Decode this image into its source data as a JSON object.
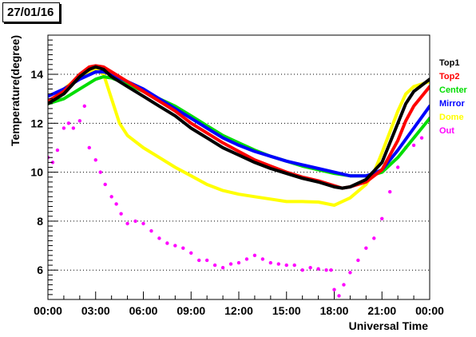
{
  "date_label": "27/01/16",
  "chart_data": {
    "type": "line",
    "xlabel": "Universal Time",
    "ylabel": "Temperature(degree)",
    "title": "",
    "xlim": [
      0,
      24
    ],
    "ylim": [
      4.8,
      15.6
    ],
    "x_ticks": [
      0,
      3,
      6,
      9,
      12,
      15,
      18,
      21,
      24
    ],
    "x_tick_labels": [
      "00:00",
      "03:00",
      "06:00",
      "09:00",
      "12:00",
      "15:00",
      "18:00",
      "21:00",
      "00:00"
    ],
    "y_ticks": [
      6,
      8,
      10,
      12,
      14
    ],
    "y_tick_labels": [
      "6",
      "8",
      "10",
      "12",
      "14"
    ],
    "grid": "horizontal dotted",
    "legend_placement": "right",
    "series": [
      {
        "name": "Top1",
        "color": "#000000",
        "style": "line",
        "x": [
          0,
          1,
          2,
          2.6,
          3,
          3.5,
          4,
          5,
          6,
          7,
          8,
          9,
          10,
          11,
          12,
          13,
          14,
          15,
          16,
          17,
          18,
          18.5,
          19,
          20,
          21,
          22,
          22.5,
          23,
          24
        ],
        "y": [
          12.8,
          13.2,
          13.9,
          14.2,
          14.3,
          14.2,
          13.9,
          13.5,
          13.1,
          12.7,
          12.3,
          11.8,
          11.4,
          11.0,
          10.7,
          10.4,
          10.15,
          9.95,
          9.75,
          9.6,
          9.4,
          9.35,
          9.4,
          9.7,
          10.4,
          12.0,
          12.8,
          13.3,
          13.8
        ]
      },
      {
        "name": "Top2",
        "color": "#ff0000",
        "style": "line",
        "x": [
          0,
          1,
          2,
          2.6,
          3,
          3.5,
          4,
          5,
          6,
          7,
          8,
          9,
          10,
          11,
          12,
          13,
          14,
          15,
          16,
          17,
          18,
          18.5,
          19,
          20,
          21,
          22,
          22.5,
          23,
          24
        ],
        "y": [
          12.9,
          13.3,
          14.0,
          14.3,
          14.35,
          14.3,
          14.1,
          13.7,
          13.3,
          12.9,
          12.5,
          12.0,
          11.6,
          11.2,
          10.85,
          10.5,
          10.25,
          10.0,
          9.8,
          9.65,
          9.45,
          9.35,
          9.4,
          9.6,
          10.1,
          11.3,
          12.1,
          12.7,
          13.5
        ]
      },
      {
        "name": "Center",
        "color": "#00dd00",
        "style": "line",
        "x": [
          0,
          1,
          2,
          3,
          3.5,
          4,
          5,
          6,
          7,
          8,
          9,
          10,
          11,
          12,
          13,
          14,
          15,
          16,
          17,
          18,
          19,
          20,
          20.5,
          21,
          22,
          23,
          24
        ],
        "y": [
          12.8,
          13.0,
          13.4,
          13.8,
          13.9,
          13.85,
          13.6,
          13.3,
          13.0,
          12.7,
          12.3,
          11.9,
          11.5,
          11.2,
          10.9,
          10.65,
          10.45,
          10.25,
          10.1,
          9.95,
          9.85,
          9.85,
          9.9,
          10.0,
          10.6,
          11.4,
          12.2
        ]
      },
      {
        "name": "Mirror",
        "color": "#0000ff",
        "style": "line",
        "x": [
          0,
          1,
          2,
          3,
          3.5,
          4,
          5,
          6,
          7,
          8,
          9,
          10,
          11,
          12,
          13,
          14,
          15,
          16,
          17,
          18,
          19,
          20,
          20.5,
          21,
          22,
          23,
          24
        ],
        "y": [
          13.1,
          13.4,
          13.8,
          14.1,
          14.1,
          14.0,
          13.7,
          13.4,
          13.0,
          12.6,
          12.2,
          11.8,
          11.4,
          11.1,
          10.85,
          10.65,
          10.45,
          10.3,
          10.15,
          10.0,
          9.85,
          9.85,
          9.95,
          10.1,
          10.9,
          11.8,
          12.7
        ]
      },
      {
        "name": "Dome",
        "color": "#ffff00",
        "style": "line",
        "x": [
          0,
          1,
          2,
          2.5,
          3,
          3.5,
          4,
          4.5,
          5,
          6,
          7,
          8,
          9,
          10,
          11,
          12,
          13,
          14,
          15,
          16,
          17,
          18,
          19,
          20,
          20.5,
          21,
          22,
          22.5,
          23,
          24
        ],
        "y": [
          12.8,
          13.4,
          13.9,
          14.1,
          14.2,
          14.0,
          13.0,
          12.0,
          11.5,
          11.0,
          10.6,
          10.2,
          9.85,
          9.5,
          9.25,
          9.1,
          9.0,
          8.9,
          8.8,
          8.8,
          8.78,
          8.65,
          8.95,
          9.5,
          10.0,
          10.8,
          12.5,
          13.2,
          13.5,
          13.7
        ]
      },
      {
        "name": "Out",
        "color": "#ff00ff",
        "style": "scatter",
        "x": [
          0,
          0.3,
          0.6,
          1,
          1.3,
          1.6,
          2,
          2.3,
          2.6,
          3,
          3.3,
          3.6,
          4,
          4.3,
          4.6,
          5,
          5.5,
          6,
          6.5,
          7,
          7.5,
          8,
          8.5,
          9,
          9.5,
          10,
          10.5,
          11,
          11.5,
          12,
          12.5,
          13,
          13.5,
          14,
          14.5,
          15,
          15.5,
          16,
          16.5,
          17,
          17.5,
          17.8,
          18,
          18.3,
          18.6,
          19,
          19.5,
          20,
          20.5,
          21,
          21.5,
          22,
          22.5,
          23,
          23.5,
          24
        ],
        "y": [
          10.6,
          10.4,
          10.9,
          11.8,
          12.0,
          11.8,
          12.1,
          12.7,
          11.0,
          10.5,
          10.0,
          9.5,
          9.0,
          8.7,
          8.3,
          7.9,
          8.0,
          7.9,
          7.6,
          7.3,
          7.1,
          7.0,
          6.9,
          6.7,
          6.4,
          6.4,
          6.2,
          6.1,
          6.25,
          6.3,
          6.45,
          6.6,
          6.45,
          6.3,
          6.25,
          6.2,
          6.2,
          6.0,
          6.1,
          6.05,
          6.0,
          6.0,
          5.2,
          4.95,
          5.4,
          5.9,
          6.4,
          6.9,
          7.3,
          8.1,
          9.2,
          10.2,
          11.0,
          11.1,
          11.4,
          12.2
        ]
      }
    ]
  }
}
